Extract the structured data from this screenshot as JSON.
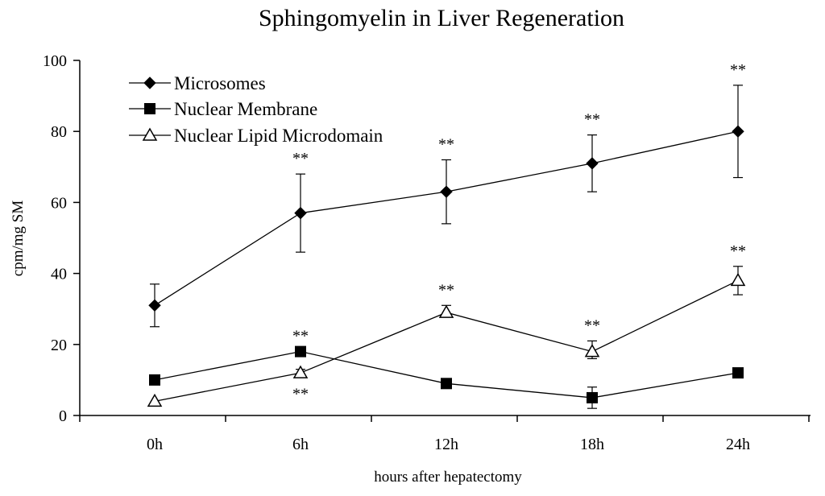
{
  "chart_data": {
    "type": "line",
    "title": "Sphingomyelin in Liver Regeneration",
    "xlabel": "hours after hepatectomy",
    "ylabel": "cpm/mg SM",
    "categories": [
      "0h",
      "6h",
      "12h",
      "18h",
      "24h"
    ],
    "ylim": [
      0,
      100
    ],
    "yticks": [
      0,
      20,
      40,
      60,
      80,
      100
    ],
    "ytick_labels": [
      "0",
      "20",
      "40",
      "60",
      "80",
      "100"
    ],
    "grid": false,
    "legend_position": "top-left",
    "significance_marker": "**",
    "series": [
      {
        "name": "Microsomes",
        "marker": "diamond",
        "values": [
          31,
          57,
          63,
          71,
          80
        ],
        "error_upper": [
          37,
          68,
          72,
          79,
          93
        ],
        "error_lower": [
          25,
          46,
          54,
          63,
          67
        ],
        "significant": [
          false,
          true,
          true,
          true,
          true
        ],
        "sig_placement": [
          "above",
          "above",
          "above",
          "above",
          "above"
        ]
      },
      {
        "name": "Nuclear Membrane",
        "marker": "square",
        "values": [
          10,
          18,
          9,
          5,
          12
        ],
        "error_upper": [
          10,
          18,
          9,
          8,
          12
        ],
        "error_lower": [
          10,
          18,
          9,
          2,
          12
        ],
        "significant": [
          false,
          true,
          false,
          false,
          false
        ],
        "sig_placement": [
          "above",
          "above",
          "above",
          "above",
          "above"
        ]
      },
      {
        "name": "Nuclear Lipid Microdomain",
        "marker": "triangle-open",
        "values": [
          4,
          12,
          29,
          18,
          38
        ],
        "error_upper": [
          4,
          13,
          31,
          21,
          42
        ],
        "error_lower": [
          4,
          11,
          28,
          16,
          34
        ],
        "significant": [
          false,
          true,
          true,
          true,
          true
        ],
        "sig_placement": [
          "above",
          "below",
          "above",
          "above",
          "above"
        ]
      }
    ]
  }
}
